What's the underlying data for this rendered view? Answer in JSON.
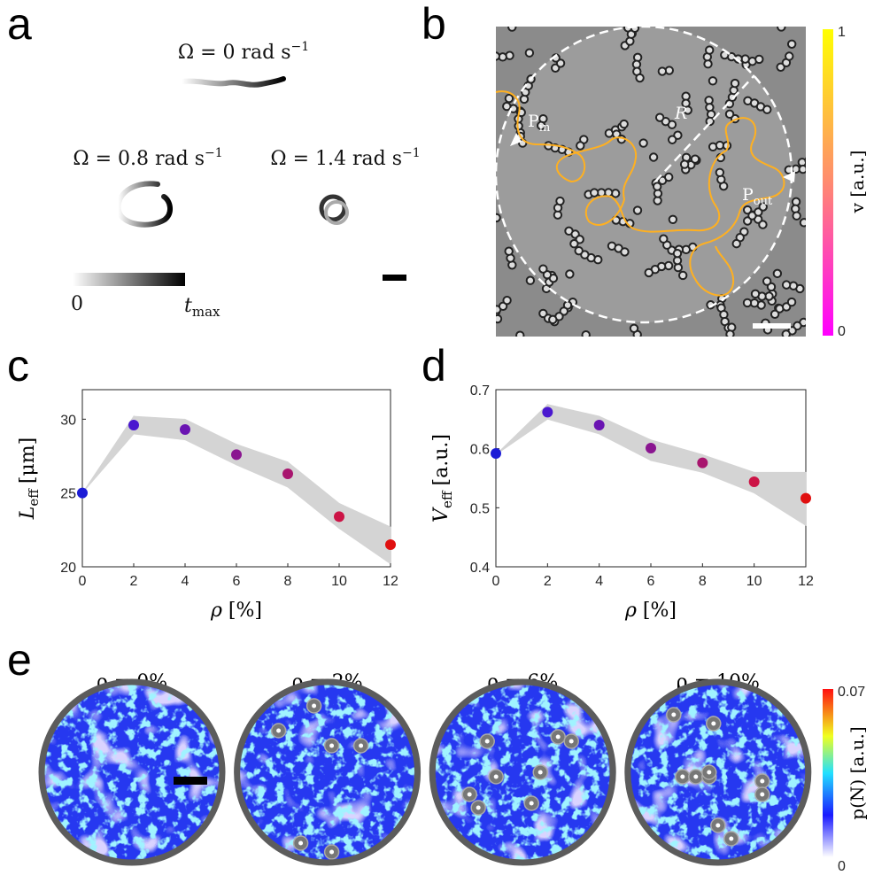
{
  "panel_letters": [
    "a",
    "b",
    "c",
    "d",
    "e"
  ],
  "panel_a": {
    "omega_labels": [
      {
        "text": "Ω = 0 rad s",
        "sup": "−1"
      },
      {
        "text": "Ω = 0.8 rad s",
        "sup": "−1"
      },
      {
        "text": "Ω = 1.4 rad s",
        "sup": "−1"
      }
    ],
    "colorbar_min": "0",
    "colorbar_max": {
      "base": "t",
      "sub": "max"
    }
  },
  "panel_b": {
    "radius_label": "R",
    "p_in": {
      "base": "P",
      "sub": "in"
    },
    "p_out": {
      "base": "P",
      "sub": "out"
    },
    "colorbar_ticks": [
      0,
      1
    ],
    "colorbar_label": "v [a.u.]"
  },
  "panel_e": {
    "titles": [
      "ρ = 0%",
      "ρ = 2%",
      "ρ = 6%",
      "ρ = 10%"
    ],
    "colorbar_ticks": [
      0,
      0.07
    ],
    "colorbar_label": "p(N) [a.u.]"
  },
  "chart_data": [
    {
      "type": "scatter",
      "x": [
        0,
        2,
        4,
        6,
        8,
        10,
        12
      ],
      "values": [
        25.0,
        29.6,
        29.3,
        27.6,
        26.3,
        23.4,
        21.5
      ],
      "band_low": [
        25.0,
        29.0,
        28.6,
        26.9,
        25.4,
        22.6,
        20.2
      ],
      "band_high": [
        25.0,
        30.2,
        30.0,
        28.3,
        27.1,
        24.3,
        22.7
      ],
      "band_color": "#d4d4d4",
      "colors": [
        "#1c1cd6",
        "#4a18cf",
        "#6a14b2",
        "#8a1590",
        "#a8156e",
        "#cc1446",
        "#e01010"
      ],
      "xlim": [
        0,
        12
      ],
      "xticks": [
        0,
        2,
        4,
        6,
        8,
        10,
        12
      ],
      "ylim": [
        20,
        32
      ],
      "yticks": [
        20,
        25,
        30
      ],
      "xlabel": {
        "base": "ρ",
        "unit": "[%]"
      },
      "ylabel": {
        "base": "L",
        "sub": "eff",
        "unit": "[μm]"
      }
    },
    {
      "type": "scatter",
      "x": [
        0,
        2,
        4,
        6,
        8,
        10,
        12
      ],
      "values": [
        0.592,
        0.662,
        0.64,
        0.601,
        0.576,
        0.544,
        0.516
      ],
      "band_low": [
        0.59,
        0.65,
        0.625,
        0.58,
        0.56,
        0.525,
        0.47
      ],
      "band_high": [
        0.59,
        0.675,
        0.655,
        0.615,
        0.59,
        0.56,
        0.56
      ],
      "band_color": "#d4d4d4",
      "colors": [
        "#1c1cd6",
        "#4a18cf",
        "#6a14b2",
        "#8a1590",
        "#a8156e",
        "#cc1446",
        "#e01010"
      ],
      "xlim": [
        0,
        12
      ],
      "xticks": [
        0,
        2,
        4,
        6,
        8,
        10,
        12
      ],
      "ylim": [
        0.4,
        0.7
      ],
      "yticks": [
        0.4,
        0.5,
        0.6,
        0.7
      ],
      "xlabel": {
        "base": "ρ",
        "unit": "[%]"
      },
      "ylabel": {
        "base": "V",
        "sub": "eff",
        "unit": "[a.u.]"
      }
    }
  ]
}
